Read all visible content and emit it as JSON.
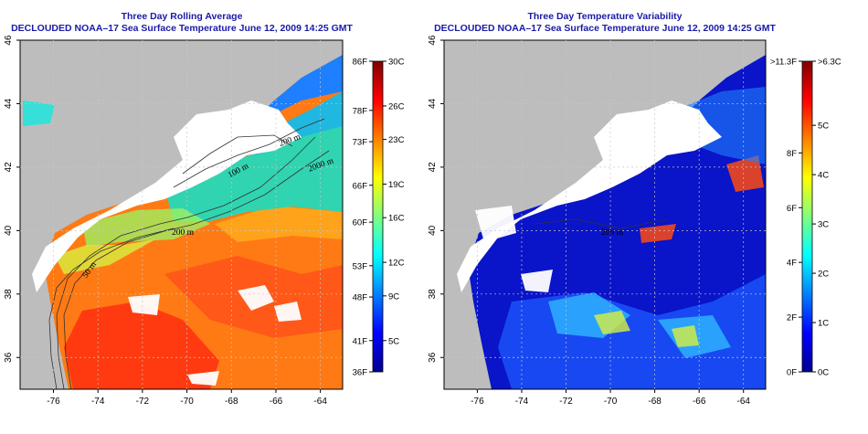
{
  "colors": {
    "land": "#bdbdbd",
    "cloud": "#ffffff",
    "title": "#1a1aa8",
    "grid": "#c8c8c8",
    "contour": "#333333"
  },
  "chart_data": [
    {
      "type": "heatmap",
      "title": "Three Day Rolling Average",
      "subtitle": "DECLOUDED NOAA–17 Sea Surface Temperature June 12, 2009 14:25 GMT",
      "xlabel": "",
      "ylabel": "",
      "xlim": [
        -77.5,
        -63
      ],
      "ylim": [
        35,
        46
      ],
      "xticks": [
        -76,
        -74,
        -72,
        -70,
        -68,
        -66,
        -64
      ],
      "yticks": [
        36,
        38,
        40,
        42,
        44,
        46
      ],
      "grid": true,
      "colormap": "jet",
      "colorbar": {
        "range_c": [
          2.2,
          30
        ],
        "left_labels": [
          "36F",
          "41F",
          "48F",
          "53F",
          "60F",
          "66F",
          "73F",
          "78F",
          "86F"
        ],
        "left_values_c": [
          2.2,
          5,
          8.9,
          11.7,
          15.6,
          18.9,
          22.8,
          25.6,
          30
        ],
        "right_labels": [
          "30C",
          "26C",
          "23C",
          "19C",
          "16C",
          "12C",
          "9C",
          "5C"
        ],
        "right_values_c": [
          30,
          26,
          23,
          19,
          16,
          12,
          9,
          5
        ]
      },
      "contour_labels": [
        "200 m",
        "2000 m",
        "100 m",
        "200 m",
        "50 m"
      ]
    },
    {
      "type": "heatmap",
      "title": "Three Day Temperature Variability",
      "subtitle": "DECLOUDED NOAA–17 Sea Surface Temperature June 12, 2009 14:25 GMT",
      "xlabel": "",
      "ylabel": "",
      "xlim": [
        -77.5,
        -63
      ],
      "ylim": [
        35,
        46
      ],
      "xticks": [
        -76,
        -74,
        -72,
        -70,
        -68,
        -66,
        -64
      ],
      "yticks": [
        36,
        38,
        40,
        42,
        44,
        46
      ],
      "grid": true,
      "colormap": "jet",
      "colorbar": {
        "range_c": [
          0,
          6.3
        ],
        "left_labels": [
          "0F",
          "2F",
          "4F",
          "6F",
          "8F",
          ">11.3F"
        ],
        "left_values_c": [
          0,
          1.11,
          2.22,
          3.33,
          4.44,
          6.3
        ],
        "right_labels": [
          ">6.3C",
          "5C",
          "4C",
          "3C",
          "2C",
          "1C",
          "0C"
        ],
        "right_values_c": [
          6.3,
          5,
          4,
          3,
          2,
          1,
          0
        ]
      },
      "contour_labels": [
        "200 m"
      ]
    }
  ]
}
